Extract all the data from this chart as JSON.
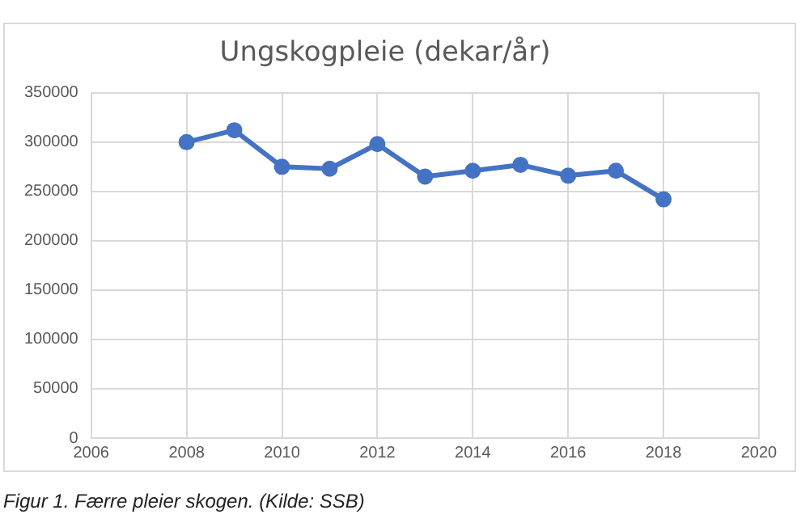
{
  "chart_data": {
    "type": "line",
    "title": "Ungskogpleie (dekar/år)",
    "x": [
      2008,
      2009,
      2010,
      2011,
      2012,
      2013,
      2014,
      2015,
      2016,
      2017,
      2018
    ],
    "series": [
      {
        "color": "#4472c4",
        "values": [
          300000,
          312000,
          275000,
          273000,
          298000,
          265000,
          271000,
          277000,
          266000,
          271000,
          242000
        ]
      }
    ],
    "xlim": [
      2006,
      2020
    ],
    "xticks": [
      2006,
      2008,
      2010,
      2012,
      2014,
      2016,
      2018,
      2020
    ],
    "ylim": [
      0,
      350000
    ],
    "yticks": [
      0,
      50000,
      100000,
      150000,
      200000,
      250000,
      300000,
      350000
    ],
    "grid": true,
    "legend": false,
    "marker": "circle",
    "line_style": "solid",
    "annotations": [
      "Figur 1. Færre pleier skogen. (Kilde: SSB)"
    ]
  }
}
